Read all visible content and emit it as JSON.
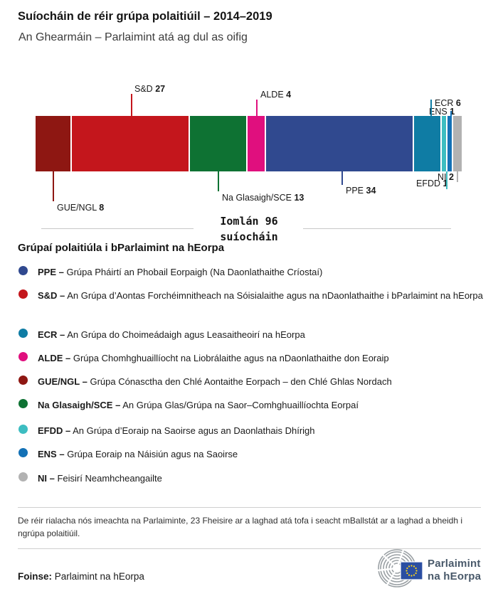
{
  "header": {
    "title": "Suíocháin de réir grúpa polaitiúil – 2014–2019",
    "subtitle": "An Ghearmáin – Parlaimint atá ag dul as oifig"
  },
  "chart_data": {
    "type": "bar",
    "stacked": true,
    "orientation": "horizontal",
    "unit": "suíocháin",
    "total_seats": 96,
    "total_label_line1": "Iomlán 96",
    "total_label_line2": "suíocháin",
    "categories": [
      "GUE/NGL",
      "S&D",
      "Na Glasaigh/SCE",
      "ALDE",
      "PPE",
      "ECR",
      "EFDD",
      "ENS",
      "NI"
    ],
    "values": [
      8,
      27,
      13,
      4,
      34,
      6,
      1,
      1,
      2
    ],
    "segments": [
      {
        "group": "GUE/NGL",
        "seats": 8,
        "color": "#8e1712"
      },
      {
        "group": "S&D",
        "seats": 27,
        "color": "#c4161c"
      },
      {
        "group": "Na Glasaigh/SCE",
        "seats": 13,
        "color": "#0e7233"
      },
      {
        "group": "ALDE",
        "seats": 4,
        "color": "#e00f7e"
      },
      {
        "group": "PPE",
        "seats": 34,
        "color": "#30498f"
      },
      {
        "group": "ECR",
        "seats": 6,
        "color": "#0f7ca4"
      },
      {
        "group": "EFDD",
        "seats": 1,
        "color": "#3dbdc1"
      },
      {
        "group": "ENS",
        "seats": 1,
        "color": "#1371b6"
      },
      {
        "group": "NI",
        "seats": 2,
        "color": "#b2b2b2"
      }
    ]
  },
  "legend": {
    "heading": "Grúpaí polaitiúla i bParlaimint na hEorpa",
    "items": [
      {
        "key": "PPE –",
        "description": "Grúpa Pháirtí an Phobail Eorpaigh (Na Daonlathaithe Críostaí)",
        "color": "#30498f"
      },
      {
        "key": "S&D –",
        "description": "An Grúpa d’Aontas Forchéimnitheach na Sóisialaithe agus na nDaonlathaithe i bParlaimint na hEorpa",
        "color": "#c4161c"
      },
      {
        "key": "ECR –",
        "description": "An Grúpa do Choimeádaigh agus Leasaitheoirí na hEorpa",
        "color": "#0f7ca4"
      },
      {
        "key": "ALDE –",
        "description": "Grúpa Chomhghuaillíocht na Liobrálaithe agus na nDaonlathaithe don Eoraip",
        "color": "#e00f7e"
      },
      {
        "key": "GUE/NGL –",
        "description": "Grúpa Cónasctha den Chlé Aontaithe Eorpach – den Chlé Ghlas Nordach",
        "color": "#8e1712"
      },
      {
        "key": "Na Glasaigh/SCE –",
        "description": "An Grúpa Glas/Grúpa na Saor–Comhghuaillíochta Eorpaí",
        "color": "#0e7233"
      },
      {
        "key": "EFDD –",
        "description": "An Grúpa d’Eoraip na Saoirse agus an Daonlathais Dhírigh",
        "color": "#3dbdc1"
      },
      {
        "key": "ENS –",
        "description": "Grúpa Eoraip na Náisiún agus na Saoirse",
        "color": "#1371b6"
      },
      {
        "key": "NI –",
        "description": "Feisirí Neamhcheangailte",
        "color": "#b2b2b2"
      }
    ]
  },
  "footnote": "De réir rialacha nós imeachta na Parlaiminte, 23 Fheisire ar a laghad atá tofa i seacht mBallstát ar a laghad a bheidh i ngrúpa polaitiúil.",
  "source": {
    "label": "Foinse:",
    "text": "Parlaimint na hEorpa"
  },
  "logo": {
    "line1": "Parlaimint",
    "line2": "na hEorpa",
    "flag_blue": "#2b4ea2",
    "star_yellow": "#ffd617",
    "arc_color": "#9aa0a4"
  }
}
